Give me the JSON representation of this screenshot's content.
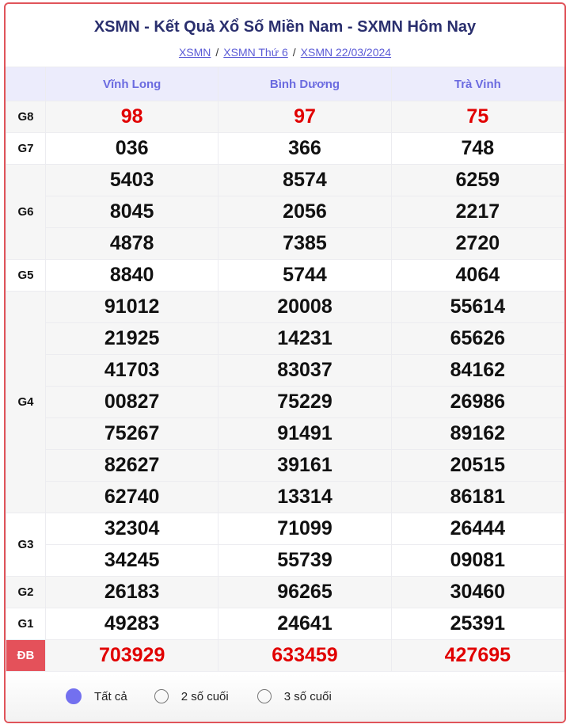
{
  "header": {
    "title": "XSMN - Kết Quả Xổ Số Miền Nam - SXMN Hôm Nay",
    "breadcrumbs": [
      "XSMN",
      "XSMN Thứ 6",
      "XSMN 22/03/2024"
    ],
    "separator": "/"
  },
  "provinces": [
    "Vĩnh Long",
    "Bình Dương",
    "Trà Vinh"
  ],
  "prizes": [
    {
      "label": "G8",
      "highlight": true,
      "rows": [
        [
          "98",
          "97",
          "75"
        ]
      ]
    },
    {
      "label": "G7",
      "rows": [
        [
          "036",
          "366",
          "748"
        ]
      ]
    },
    {
      "label": "G6",
      "rows": [
        [
          "5403",
          "8574",
          "6259"
        ],
        [
          "8045",
          "2056",
          "2217"
        ],
        [
          "4878",
          "7385",
          "2720"
        ]
      ]
    },
    {
      "label": "G5",
      "rows": [
        [
          "8840",
          "5744",
          "4064"
        ]
      ]
    },
    {
      "label": "G4",
      "rows": [
        [
          "91012",
          "20008",
          "55614"
        ],
        [
          "21925",
          "14231",
          "65626"
        ],
        [
          "41703",
          "83037",
          "84162"
        ],
        [
          "00827",
          "75229",
          "26986"
        ],
        [
          "75267",
          "91491",
          "89162"
        ],
        [
          "82627",
          "39161",
          "20515"
        ],
        [
          "62740",
          "13314",
          "86181"
        ]
      ]
    },
    {
      "label": "G3",
      "rows": [
        [
          "32304",
          "71099",
          "26444"
        ],
        [
          "34245",
          "55739",
          "09081"
        ]
      ]
    },
    {
      "label": "G2",
      "rows": [
        [
          "26183",
          "96265",
          "30460"
        ]
      ]
    },
    {
      "label": "G1",
      "rows": [
        [
          "49283",
          "24641",
          "25391"
        ]
      ]
    },
    {
      "label": "ĐB",
      "highlight": true,
      "special": true,
      "rows": [
        [
          "703929",
          "633459",
          "427695"
        ]
      ]
    }
  ],
  "filter": {
    "options": [
      "Tất cả",
      "2 số cuối",
      "3 số cuối"
    ],
    "selected": "Tất cả"
  },
  "colors": {
    "accent": "#7370ef",
    "prize_red": "#e10000",
    "special_bg": "#e4515a",
    "title": "#2a2f6e"
  }
}
